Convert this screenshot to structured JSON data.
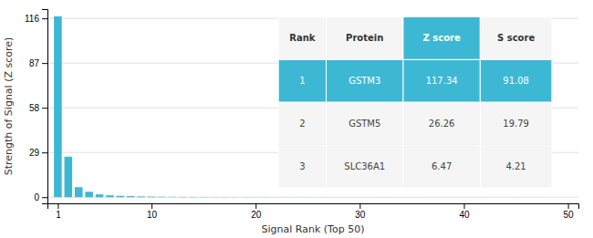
{
  "chart_data": {
    "type": "bar",
    "x": [
      1,
      2,
      3,
      4,
      5,
      6,
      7,
      8,
      9,
      10,
      11,
      12,
      13,
      14,
      15,
      16,
      17,
      18,
      19,
      20,
      21,
      22,
      23,
      24,
      25,
      26,
      27,
      28,
      29,
      30,
      31,
      32,
      33,
      34,
      35,
      36,
      37,
      38,
      39,
      40,
      41,
      42,
      43,
      44,
      45,
      46,
      47,
      48,
      49,
      50
    ],
    "values": [
      117.34,
      26.26,
      6.47,
      3.5,
      1.8,
      1.2,
      0.9,
      0.7,
      0.5,
      0.4,
      0.3,
      0.25,
      0.2,
      0.18,
      0.15,
      0.13,
      0.11,
      0.1,
      0.09,
      0.08,
      0.07,
      0.06,
      0.055,
      0.05,
      0.045,
      0.04,
      0.038,
      0.035,
      0.032,
      0.03,
      0.028,
      0.026,
      0.024,
      0.022,
      0.02,
      0.018,
      0.016,
      0.015,
      0.014,
      0.013,
      0.012,
      0.011,
      0.01,
      0.009,
      0.008,
      0.007,
      0.006,
      0.005,
      0.004,
      0.003
    ],
    "color": "#3db8d4",
    "xlabel": "Signal Rank (Top 50)",
    "ylabel": "Strength of Signal (Z score)",
    "xlim": [
      0,
      51
    ],
    "xticks": [
      1,
      10,
      20,
      30,
      40,
      50
    ],
    "ylim": [
      -4,
      122
    ],
    "yticks": [
      0,
      29,
      58,
      87,
      116
    ],
    "grid": true,
    "table": {
      "headers": [
        "Rank",
        "Protein",
        "Z score",
        "S score"
      ],
      "rows": [
        [
          "1",
          "GSTM3",
          "117.34",
          "91.08"
        ],
        [
          "2",
          "GSTM5",
          "26.26",
          "19.79"
        ],
        [
          "3",
          "SLC36A1",
          "6.47",
          "4.21"
        ]
      ]
    }
  }
}
